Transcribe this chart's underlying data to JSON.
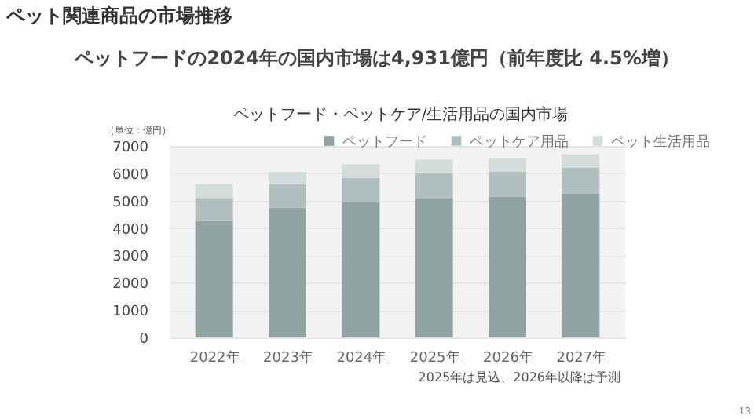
{
  "chart_data": {
    "type": "bar",
    "stacked": true,
    "title": "ペット関連商品の市場推移",
    "subtitle": "ペットフードの2024年の国内市場は4,931億円（前年度比 4.5%増）",
    "ylabel": "（単位：億円）",
    "annotations": [
      "ペットフード・ペットケア/生活用品の国内市場",
      "2025年は見込、2026年以降は予測",
      "13"
    ],
    "categories": [
      "2022年",
      "2023年",
      "2024年",
      "2025年",
      "2026年",
      "2027年"
    ],
    "series": [
      {
        "name": "ペットフード",
        "color": "#8fa3a3",
        "values": [
          4250,
          4750,
          4931,
          5100,
          5150,
          5250
        ]
      },
      {
        "name": "ペットケア用品",
        "color": "#b0bfbe",
        "values": [
          850,
          850,
          900,
          900,
          900,
          950
        ]
      },
      {
        "name": "ペット生活用品",
        "color": "#d3dcdb",
        "values": [
          500,
          450,
          500,
          500,
          500,
          500
        ]
      }
    ],
    "ylim": [
      0,
      7000
    ],
    "yticks": [
      0,
      1000,
      2000,
      3000,
      4000,
      5000,
      6000,
      7000
    ],
    "grid": "y",
    "legend": "top right"
  }
}
